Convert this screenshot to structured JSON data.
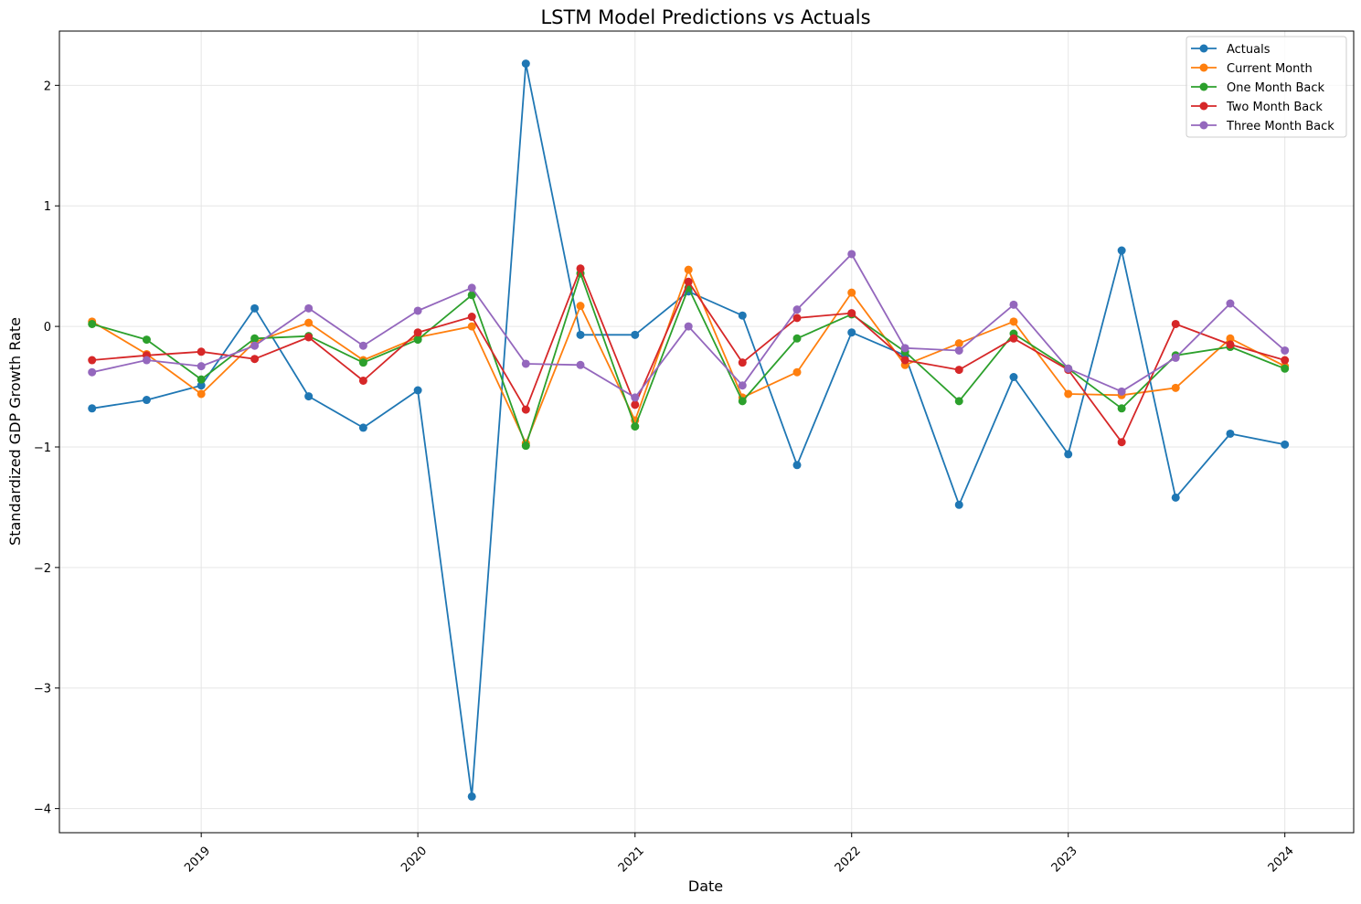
{
  "chart_data": {
    "type": "line",
    "title": "LSTM Model Predictions vs Actuals",
    "xlabel": "Date",
    "ylabel": "Standardized GDP Growth Rate",
    "x": [
      "2018-07-01",
      "2018-10-01",
      "2019-01-01",
      "2019-04-01",
      "2019-07-01",
      "2019-10-01",
      "2020-01-01",
      "2020-04-01",
      "2020-07-01",
      "2020-10-01",
      "2021-01-01",
      "2021-04-01",
      "2021-07-01",
      "2021-10-01",
      "2022-01-01",
      "2022-04-01",
      "2022-07-01",
      "2022-10-01",
      "2023-01-01",
      "2023-04-01",
      "2023-07-01",
      "2023-10-01",
      "2024-01-01"
    ],
    "xlim": [
      "2018-05-07",
      "2024-04-26"
    ],
    "ylim": [
      -4.2,
      2.45
    ],
    "x_ticks": [
      {
        "date": "2019-01-01",
        "label": "2019"
      },
      {
        "date": "2020-01-01",
        "label": "2020"
      },
      {
        "date": "2021-01-01",
        "label": "2021"
      },
      {
        "date": "2022-01-01",
        "label": "2022"
      },
      {
        "date": "2023-01-01",
        "label": "2023"
      },
      {
        "date": "2024-01-01",
        "label": "2024"
      }
    ],
    "y_ticks": [
      {
        "value": 2,
        "label": "2"
      },
      {
        "value": 1,
        "label": "1"
      },
      {
        "value": 0,
        "label": "0"
      },
      {
        "value": -1,
        "label": "−1"
      },
      {
        "value": -2,
        "label": "−2"
      },
      {
        "value": -3,
        "label": "−3"
      },
      {
        "value": -4,
        "label": "−4"
      }
    ],
    "grid": true,
    "legend_position": "top-right",
    "series": [
      {
        "name": "Actuals",
        "color": "#1f77b4",
        "values": [
          -0.68,
          -0.61,
          -0.49,
          0.15,
          -0.58,
          -0.84,
          -0.53,
          -3.9,
          2.18,
          -0.07,
          -0.07,
          0.29,
          0.09,
          -1.15,
          -0.05,
          -0.24,
          -1.48,
          -0.42,
          -1.06,
          0.63,
          -1.42,
          -0.89,
          -0.98
        ]
      },
      {
        "name": "Current Month",
        "color": "#ff7f0e",
        "values": [
          0.04,
          -0.23,
          -0.56,
          -0.13,
          0.03,
          -0.28,
          -0.09,
          0.0,
          -0.97,
          0.17,
          -0.78,
          0.47,
          -0.59,
          -0.38,
          0.28,
          -0.32,
          -0.14,
          0.04,
          -0.56,
          -0.57,
          -0.51,
          -0.1,
          -0.33
        ]
      },
      {
        "name": "One Month Back",
        "color": "#2ca02c",
        "values": [
          0.02,
          -0.11,
          -0.44,
          -0.1,
          -0.08,
          -0.3,
          -0.11,
          0.26,
          -0.99,
          0.44,
          -0.83,
          0.32,
          -0.62,
          -0.1,
          0.1,
          -0.21,
          -0.62,
          -0.06,
          -0.35,
          -0.68,
          -0.24,
          -0.17,
          -0.35
        ]
      },
      {
        "name": "Two Month Back",
        "color": "#d62728",
        "values": [
          -0.28,
          -0.24,
          -0.21,
          -0.27,
          -0.09,
          -0.45,
          -0.05,
          0.08,
          -0.69,
          0.48,
          -0.65,
          0.37,
          -0.3,
          0.07,
          0.11,
          -0.28,
          -0.36,
          -0.1,
          -0.36,
          -0.96,
          0.02,
          -0.15,
          -0.28
        ]
      },
      {
        "name": "Three Month Back",
        "color": "#9467bd",
        "values": [
          -0.38,
          -0.28,
          -0.33,
          -0.16,
          0.15,
          -0.16,
          0.13,
          0.32,
          -0.31,
          -0.32,
          -0.59,
          0.0,
          -0.49,
          0.14,
          0.6,
          -0.18,
          -0.2,
          0.18,
          -0.35,
          -0.54,
          -0.26,
          0.19,
          -0.2
        ]
      }
    ]
  }
}
